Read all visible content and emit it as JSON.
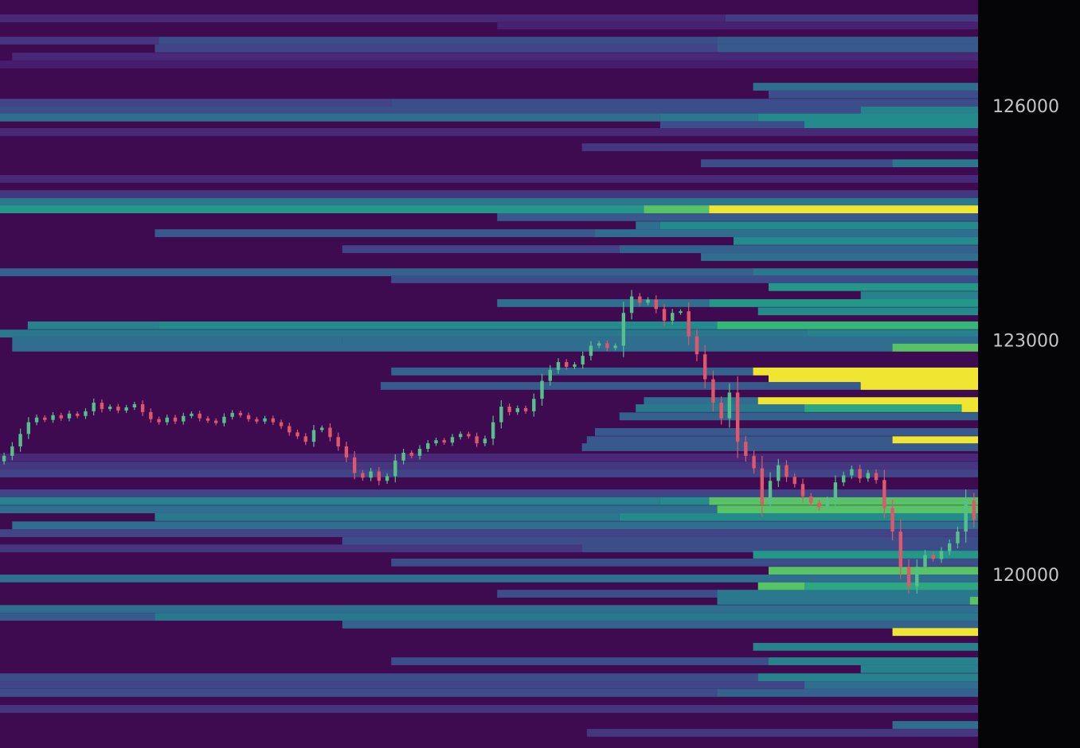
{
  "chart_data": {
    "type": "heatmap",
    "title": "",
    "xlabel": "",
    "ylabel": "",
    "ylim": [
      117780,
      127355
    ],
    "y_ticks": [
      120000,
      123000,
      126000
    ],
    "y_tick_labels": [
      "120000",
      "123000",
      "126000"
    ],
    "grid": false,
    "legend": "none",
    "colormap": "viridis",
    "time_range": [
      0,
      120
    ],
    "bucket_size": 100,
    "colors": {
      "background": "#3e0a50",
      "axis_panel": "#050508",
      "candle_up": "#55c08c",
      "candle_down": "#e0566a",
      "tick_label": "#c4c4c8"
    },
    "liquidation_bands": [
      {
        "price": 127120,
        "segments": [
          [
            0,
            0.15
          ],
          [
            89,
            0.22
          ]
        ]
      },
      {
        "price": 127030,
        "segments": [
          [
            61,
            0.12
          ]
        ]
      },
      {
        "price": 126835,
        "segments": [
          [
            0,
            0.2
          ],
          [
            19.5,
            0.3
          ],
          [
            88,
            0.35
          ]
        ]
      },
      {
        "price": 126735,
        "segments": [
          [
            19,
            0.25
          ],
          [
            88,
            0.35
          ]
        ]
      },
      {
        "price": 126630,
        "segments": [
          [
            1.5,
            0.15
          ]
        ]
      },
      {
        "price": 126530,
        "segments": [
          [
            0,
            0.1
          ]
        ]
      },
      {
        "price": 126245,
        "segments": [
          [
            92.4,
            0.45
          ]
        ]
      },
      {
        "price": 126145,
        "segments": [
          [
            94.3,
            0.3
          ]
        ]
      },
      {
        "price": 126040,
        "segments": [
          [
            0,
            0.25
          ],
          [
            48,
            0.3
          ]
        ]
      },
      {
        "price": 125940,
        "segments": [
          [
            0,
            0.3
          ],
          [
            105.6,
            0.55
          ]
        ]
      },
      {
        "price": 125850,
        "segments": [
          [
            0,
            0.45
          ],
          [
            81,
            0.5
          ],
          [
            93,
            0.6
          ]
        ]
      },
      {
        "price": 125755,
        "segments": [
          [
            81,
            0.3
          ],
          [
            98.7,
            0.6
          ]
        ]
      },
      {
        "price": 125665,
        "segments": [
          [
            0,
            0.15
          ]
        ]
      },
      {
        "price": 125470,
        "segments": [
          [
            71.4,
            0.2
          ]
        ]
      },
      {
        "price": 125265,
        "segments": [
          [
            86,
            0.3
          ],
          [
            109.5,
            0.5
          ]
        ]
      },
      {
        "price": 125065,
        "segments": [
          [
            0,
            0.15
          ]
        ]
      },
      {
        "price": 124870,
        "segments": [
          [
            0,
            0.2
          ]
        ]
      },
      {
        "price": 124770,
        "segments": [
          [
            0,
            0.5
          ]
        ]
      },
      {
        "price": 124675,
        "segments": [
          [
            0,
            0.65
          ],
          [
            79,
            0.8
          ],
          [
            87,
            1.0
          ]
        ]
      },
      {
        "price": 124575,
        "segments": [
          [
            61,
            0.35
          ]
        ]
      },
      {
        "price": 124470,
        "segments": [
          [
            78,
            0.45
          ],
          [
            81,
            0.6
          ]
        ]
      },
      {
        "price": 124370,
        "segments": [
          [
            19,
            0.35
          ],
          [
            73,
            0.45
          ]
        ]
      },
      {
        "price": 124270,
        "segments": [
          [
            90,
            0.6
          ]
        ]
      },
      {
        "price": 124165,
        "segments": [
          [
            42,
            0.25
          ],
          [
            76,
            0.4
          ]
        ]
      },
      {
        "price": 124065,
        "segments": [
          [
            86,
            0.45
          ]
        ]
      },
      {
        "price": 123870,
        "segments": [
          [
            0,
            0.4
          ],
          [
            92.4,
            0.5
          ]
        ]
      },
      {
        "price": 123780,
        "segments": [
          [
            48,
            0.3
          ]
        ]
      },
      {
        "price": 123680,
        "segments": [
          [
            94.3,
            0.65
          ]
        ]
      },
      {
        "price": 123575,
        "segments": [
          [
            105.6,
            0.55
          ]
        ]
      },
      {
        "price": 123475,
        "segments": [
          [
            61,
            0.45
          ],
          [
            87,
            0.65
          ]
        ]
      },
      {
        "price": 123370,
        "segments": [
          [
            93,
            0.6
          ]
        ]
      },
      {
        "price": 123190,
        "segments": [
          [
            3.4,
            0.55
          ],
          [
            19.5,
            0.6
          ],
          [
            88,
            0.75
          ]
        ]
      },
      {
        "price": 123085,
        "segments": [
          [
            0,
            0.5
          ],
          [
            99,
            0.55
          ]
        ]
      },
      {
        "price": 123000,
        "segments": [
          [
            1.5,
            0.45
          ],
          [
            42,
            0.45
          ]
        ]
      },
      {
        "price": 122905,
        "segments": [
          [
            1.5,
            0.45
          ],
          [
            109.5,
            0.8
          ]
        ]
      },
      {
        "price": 122600,
        "segments": [
          [
            48,
            0.4
          ],
          [
            92.4,
            1.0
          ]
        ]
      },
      {
        "price": 122505,
        "segments": [
          [
            94.3,
            1.0
          ]
        ]
      },
      {
        "price": 122415,
        "segments": [
          [
            46.7,
            0.35
          ],
          [
            105.6,
            1.0
          ]
        ]
      },
      {
        "price": 122220,
        "segments": [
          [
            79,
            0.45
          ],
          [
            93,
            1.0
          ]
        ]
      },
      {
        "price": 122130,
        "segments": [
          [
            78,
            0.5
          ],
          [
            98.7,
            0.7
          ],
          [
            118,
            1.0
          ]
        ]
      },
      {
        "price": 122025,
        "segments": [
          [
            76,
            0.4
          ]
        ]
      },
      {
        "price": 121825,
        "segments": [
          [
            73,
            0.35
          ]
        ]
      },
      {
        "price": 121720,
        "segments": [
          [
            72,
            0.35
          ],
          [
            109.5,
            1.0
          ]
        ]
      },
      {
        "price": 121630,
        "segments": [
          [
            71.4,
            0.35
          ]
        ]
      },
      {
        "price": 121500,
        "segments": [
          [
            0,
            0.15
          ]
        ]
      },
      {
        "price": 121395,
        "segments": [
          [
            0,
            0.2
          ]
        ]
      },
      {
        "price": 121295,
        "segments": [
          [
            0,
            0.25
          ]
        ]
      },
      {
        "price": 121040,
        "segments": [
          [
            0,
            0.25
          ]
        ]
      },
      {
        "price": 120940,
        "segments": [
          [
            0,
            0.55
          ],
          [
            81,
            0.6
          ],
          [
            87,
            0.8
          ]
        ]
      },
      {
        "price": 120835,
        "segments": [
          [
            0,
            0.45
          ],
          [
            88,
            0.8
          ]
        ]
      },
      {
        "price": 120735,
        "segments": [
          [
            19,
            0.5
          ],
          [
            76,
            0.6
          ]
        ]
      },
      {
        "price": 120630,
        "segments": [
          [
            1.5,
            0.45
          ]
        ]
      },
      {
        "price": 120530,
        "segments": [
          [
            0,
            0.25
          ]
        ]
      },
      {
        "price": 120430,
        "segments": [
          [
            42,
            0.3
          ]
        ]
      },
      {
        "price": 120335,
        "segments": [
          [
            0,
            0.2
          ],
          [
            71.4,
            0.3
          ]
        ]
      },
      {
        "price": 120255,
        "segments": [
          [
            92.4,
            0.65
          ]
        ]
      },
      {
        "price": 120155,
        "segments": [
          [
            48,
            0.3
          ]
        ]
      },
      {
        "price": 120050,
        "segments": [
          [
            94.3,
            0.8
          ]
        ]
      },
      {
        "price": 119950,
        "segments": [
          [
            0,
            0.45
          ]
        ]
      },
      {
        "price": 119850,
        "segments": [
          [
            93,
            0.8
          ],
          [
            98.7,
            0.7
          ]
        ]
      },
      {
        "price": 119755,
        "segments": [
          [
            61,
            0.3
          ],
          [
            88,
            0.5
          ]
        ]
      },
      {
        "price": 119665,
        "segments": [
          [
            88,
            0.5
          ],
          [
            119,
            0.8
          ]
        ]
      },
      {
        "price": 119560,
        "segments": [
          [
            0,
            0.45
          ]
        ]
      },
      {
        "price": 119460,
        "segments": [
          [
            0,
            0.35
          ],
          [
            19,
            0.5
          ]
        ]
      },
      {
        "price": 119360,
        "segments": [
          [
            42,
            0.4
          ]
        ]
      },
      {
        "price": 119265,
        "segments": [
          [
            109.5,
            1.0
          ]
        ]
      },
      {
        "price": 119075,
        "segments": [
          [
            92.4,
            0.55
          ]
        ]
      },
      {
        "price": 118890,
        "segments": [
          [
            48,
            0.3
          ],
          [
            94.3,
            0.55
          ]
        ]
      },
      {
        "price": 118790,
        "segments": [
          [
            105.6,
            0.55
          ]
        ]
      },
      {
        "price": 118685,
        "segments": [
          [
            0,
            0.3
          ],
          [
            93,
            0.55
          ]
        ]
      },
      {
        "price": 118585,
        "segments": [
          [
            0,
            0.25
          ],
          [
            98.7,
            0.45
          ]
        ]
      },
      {
        "price": 118485,
        "segments": [
          [
            0,
            0.3
          ],
          [
            88,
            0.4
          ]
        ]
      },
      {
        "price": 118280,
        "segments": [
          [
            0,
            0.2
          ]
        ]
      },
      {
        "price": 118075,
        "segments": [
          [
            109.5,
            0.45
          ]
        ]
      },
      {
        "price": 117975,
        "segments": [
          [
            72,
            0.2
          ]
        ]
      }
    ],
    "candles_open_first": 121450,
    "candles_close": [
      121520,
      121640,
      121800,
      121950,
      122010,
      121980,
      122040,
      122000,
      122060,
      122030,
      122090,
      122200,
      122120,
      122150,
      122100,
      122140,
      122180,
      122080,
      121990,
      121950,
      122010,
      121960,
      122030,
      122060,
      122000,
      121970,
      121940,
      122020,
      122070,
      122040,
      121990,
      121960,
      122000,
      121950,
      121900,
      121820,
      121770,
      121700,
      121850,
      121880,
      121760,
      121640,
      121500,
      121300,
      121240,
      121320,
      121200,
      121260,
      121460,
      121560,
      121520,
      121610,
      121680,
      121720,
      121690,
      121760,
      121800,
      121770,
      121680,
      121740,
      121950,
      122150,
      122080,
      122130,
      122090,
      122250,
      122480,
      122620,
      122720,
      122660,
      122690,
      122800,
      122930,
      122960,
      122900,
      122930,
      123350,
      123560,
      123480,
      123520,
      123400,
      123250,
      123350,
      123370,
      123050,
      122820,
      122500,
      122200,
      122000,
      122330,
      121700,
      121520,
      121360,
      120900,
      121200,
      121400,
      121250,
      121160,
      121000,
      120920,
      120860,
      120950,
      121180,
      121270,
      121350,
      121230,
      121300,
      121210,
      120850,
      120550,
      120100,
      119850,
      120100,
      120250,
      120200,
      120300,
      120400,
      120550,
      120950,
      120700
    ]
  }
}
